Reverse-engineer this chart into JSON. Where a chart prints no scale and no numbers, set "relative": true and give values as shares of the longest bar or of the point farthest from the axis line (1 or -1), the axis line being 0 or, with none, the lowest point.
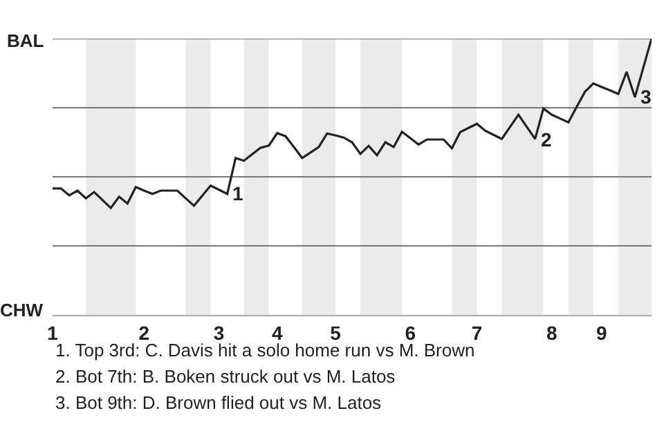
{
  "chart_data": {
    "type": "line",
    "relative": true,
    "categories": [
      "1",
      null,
      null,
      null,
      null,
      null,
      null,
      null,
      null,
      null,
      null,
      "2",
      null,
      null,
      null,
      null,
      null,
      null,
      null,
      null,
      "3",
      null,
      null,
      null,
      null,
      null,
      null,
      "4",
      null,
      null,
      null,
      null,
      null,
      null,
      "5",
      null,
      null,
      null,
      null,
      null,
      null,
      null,
      null,
      "6",
      null,
      null,
      null,
      null,
      null,
      null,
      null,
      "7",
      null,
      null,
      null,
      null,
      null,
      null,
      null,
      null,
      "8",
      null,
      null,
      null,
      null,
      null,
      "9",
      null,
      null,
      null,
      null,
      null,
      null
    ],
    "series": [
      {
        "color": "#222222",
        "values": [
          0.458,
          0.458,
          0.433,
          0.45,
          0.422,
          0.445,
          0.416,
          0.387,
          0.428,
          0.403,
          0.463,
          0.45,
          0.438,
          0.45,
          0.45,
          0.45,
          0.422,
          0.395,
          0.432,
          0.468,
          0.453,
          0.438,
          0.568,
          0.558,
          0.582,
          0.605,
          0.613,
          0.658,
          0.647,
          0.608,
          0.568,
          0.588,
          0.608,
          0.657,
          0.65,
          0.642,
          0.625,
          0.583,
          0.612,
          0.578,
          0.625,
          0.608,
          0.663,
          0.64,
          0.617,
          0.635,
          0.635,
          0.635,
          0.603,
          0.662,
          0.677,
          0.692,
          0.667,
          0.652,
          0.637,
          0.681,
          0.725,
          0.681,
          0.637,
          0.747,
          0.725,
          0.711,
          0.697,
          0.753,
          0.808,
          0.838,
          0.825,
          0.813,
          0.8,
          0.88,
          0.788,
          0.894,
          1
        ]
      }
    ],
    "grid": "y",
    "marker": "none",
    "line_style": "solid",
    "annotations": [
      "BAL",
      "CHW",
      "1",
      "2",
      "3",
      "1. Top 3rd: C. Davis hit a solo home run vs M. Brown",
      "2. Bot 7th: B. Boken struck out vs M. Latos",
      "3. Bot 9th: D. Brown flied out vs M. Latos"
    ]
  }
}
